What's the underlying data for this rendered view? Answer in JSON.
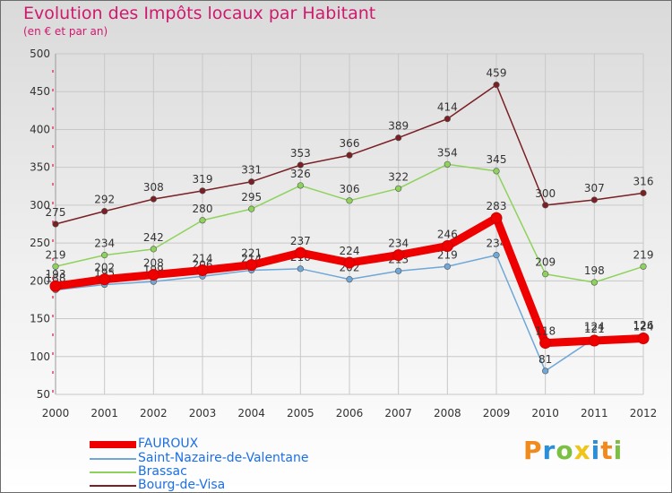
{
  "chart_data": {
    "type": "line",
    "title": "Evolution des Impôts locaux par Habitant",
    "subtitle": "(en € et par an)",
    "categories": [
      "2000",
      "2001",
      "2002",
      "2003",
      "2004",
      "2005",
      "2006",
      "2007",
      "2008",
      "2009",
      "2010",
      "2011",
      "2012"
    ],
    "ylim": [
      50,
      500
    ],
    "yticks": [
      50,
      100,
      150,
      200,
      250,
      300,
      350,
      400,
      450,
      500
    ],
    "series": [
      {
        "name": "Bourg-de-Visa",
        "color": "#7a1f24",
        "values": [
          275,
          292,
          308,
          319,
          331,
          353,
          366,
          389,
          414,
          459,
          300,
          307,
          316
        ]
      },
      {
        "name": "Brassac",
        "color": "#8ed25c",
        "values": [
          219,
          234,
          242,
          280,
          295,
          326,
          306,
          322,
          354,
          345,
          209,
          198,
          219
        ]
      },
      {
        "name": "Saint-Nazaire-de-Valentane",
        "color": "#6ea7d8",
        "values": [
          188,
          195,
          199,
          206,
          214,
          216,
          202,
          213,
          219,
          234,
          81,
          124,
          126
        ]
      },
      {
        "name": "FAUROUX",
        "color": "#ee0000",
        "values": [
          193,
          202,
          208,
          214,
          221,
          237,
          224,
          234,
          246,
          283,
          118,
          121,
          124
        ]
      }
    ],
    "legend": [
      {
        "name": "FAUROUX",
        "color": "#ee0000",
        "label_color": "#1b6fe8"
      },
      {
        "name": "Saint-Nazaire-de-Valentane",
        "color": "#6ea7d8",
        "label_color": "#1b6fe8"
      },
      {
        "name": "Brassac",
        "color": "#8ed25c",
        "label_color": "#1b6fe8"
      },
      {
        "name": "Bourg-de-Visa",
        "color": "#7a1f24",
        "label_color": "#1b6fe8"
      }
    ]
  },
  "logo": {
    "text": "Proxiti"
  }
}
